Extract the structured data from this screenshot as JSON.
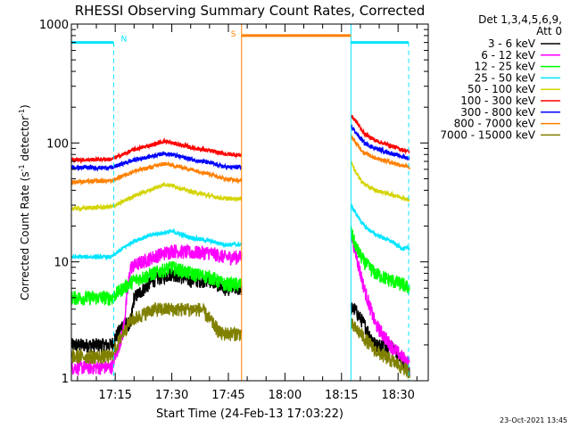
{
  "chart_data": {
    "type": "line",
    "title": "RHESSI Observing Summary Count Rates, Corrected",
    "xlabel": "Start Time (24-Feb-13 17:03:22)",
    "ylabel_main": "Corrected Count Rate (s",
    "ylabel_sup": "-1",
    "ylabel_tail": " detector",
    "ylabel_sup2": "-1",
    "ylabel_end": ")",
    "footer": "23-Oct-2021 13:45",
    "y_scale": "log",
    "ylim": [
      1,
      1000
    ],
    "xlim_minutes": [
      1023.37,
      1118
    ],
    "y_ticks": [
      {
        "v": 1,
        "label": "1"
      },
      {
        "v": 10,
        "label": "10"
      },
      {
        "v": 100,
        "label": "100"
      },
      {
        "v": 1000,
        "label": "1000"
      }
    ],
    "x_ticks": [
      {
        "m": 1035,
        "label": "17:15"
      },
      {
        "m": 1050,
        "label": "17:30"
      },
      {
        "m": 1065,
        "label": "17:45"
      },
      {
        "m": 1080,
        "label": "18:00"
      },
      {
        "m": 1095,
        "label": "18:15"
      },
      {
        "m": 1110,
        "label": "18:30"
      }
    ],
    "legend_header": [
      "Det 1,3,4,5,6,9,",
      "Att 0"
    ],
    "series": [
      {
        "name": "3 - 6 keV",
        "color": "#000000",
        "points": [
          [
            1023.4,
            2
          ],
          [
            1034,
            2
          ],
          [
            1037,
            3
          ],
          [
            1039,
            3
          ],
          [
            1040,
            5
          ],
          [
            1045,
            7
          ],
          [
            1050,
            8
          ],
          [
            1055,
            7
          ],
          [
            1060,
            7
          ],
          [
            1064,
            6
          ],
          [
            1068.5,
            6
          ],
          [
            1098.5,
            4
          ],
          [
            1101,
            3
          ],
          [
            1104,
            2
          ],
          [
            1108,
            2
          ],
          [
            1111,
            1.5
          ],
          [
            1113,
            1.2
          ]
        ]
      },
      {
        "name": "6 - 12 keV",
        "color": "#ff00ff",
        "points": [
          [
            1023.4,
            1.3
          ],
          [
            1034,
            1.3
          ],
          [
            1037,
            2.5
          ],
          [
            1039,
            9
          ],
          [
            1045,
            11
          ],
          [
            1050,
            12.5
          ],
          [
            1055,
            12
          ],
          [
            1060,
            12
          ],
          [
            1064,
            11
          ],
          [
            1068.5,
            11
          ],
          [
            1097.5,
            18
          ],
          [
            1099,
            11
          ],
          [
            1101,
            6
          ],
          [
            1104,
            3
          ],
          [
            1108,
            2
          ],
          [
            1111,
            1.6
          ],
          [
            1113,
            1.4
          ]
        ]
      },
      {
        "name": "12 - 25 keV",
        "color": "#00ff00",
        "points": [
          [
            1023.4,
            5
          ],
          [
            1034,
            5
          ],
          [
            1037,
            6
          ],
          [
            1040,
            7
          ],
          [
            1045,
            8
          ],
          [
            1050,
            9
          ],
          [
            1055,
            8
          ],
          [
            1060,
            7.5
          ],
          [
            1064,
            6.5
          ],
          [
            1068.5,
            6.5
          ],
          [
            1097.5,
            18
          ],
          [
            1099,
            13
          ],
          [
            1101,
            10
          ],
          [
            1104,
            8
          ],
          [
            1108,
            7
          ],
          [
            1111,
            6.5
          ],
          [
            1113,
            6
          ]
        ]
      },
      {
        "name": "25 - 50 keV",
        "color": "#00e5ff",
        "points": [
          [
            1023.4,
            11
          ],
          [
            1034,
            11
          ],
          [
            1037,
            13
          ],
          [
            1040,
            15
          ],
          [
            1045,
            17
          ],
          [
            1050,
            18
          ],
          [
            1055,
            16
          ],
          [
            1060,
            15
          ],
          [
            1064,
            14
          ],
          [
            1068.5,
            14
          ],
          [
            1097.5,
            30
          ],
          [
            1099,
            25
          ],
          [
            1101,
            20
          ],
          [
            1104,
            17
          ],
          [
            1108,
            15
          ],
          [
            1111,
            13
          ],
          [
            1113,
            13
          ]
        ]
      },
      {
        "name": "50 - 100 keV",
        "color": "#d4d400",
        "points": [
          [
            1023.4,
            28
          ],
          [
            1034,
            29
          ],
          [
            1037,
            32
          ],
          [
            1040,
            36
          ],
          [
            1045,
            41
          ],
          [
            1048,
            45
          ],
          [
            1050,
            44
          ],
          [
            1055,
            39
          ],
          [
            1060,
            36
          ],
          [
            1064,
            34
          ],
          [
            1068.5,
            34
          ],
          [
            1097.5,
            70
          ],
          [
            1099,
            55
          ],
          [
            1101,
            45
          ],
          [
            1104,
            40
          ],
          [
            1108,
            37
          ],
          [
            1111,
            35
          ],
          [
            1113,
            33
          ]
        ]
      },
      {
        "name": "100 - 300 keV",
        "color": "#ff0000",
        "points": [
          [
            1023.4,
            72
          ],
          [
            1034,
            73
          ],
          [
            1037,
            80
          ],
          [
            1040,
            88
          ],
          [
            1045,
            97
          ],
          [
            1048,
            104
          ],
          [
            1050,
            100
          ],
          [
            1055,
            92
          ],
          [
            1060,
            86
          ],
          [
            1064,
            81
          ],
          [
            1068.5,
            79
          ],
          [
            1097.5,
            170
          ],
          [
            1099,
            150
          ],
          [
            1101,
            120
          ],
          [
            1104,
            105
          ],
          [
            1108,
            95
          ],
          [
            1111,
            88
          ],
          [
            1113,
            85
          ]
        ]
      },
      {
        "name": "300 - 800 keV",
        "color": "#0000ff",
        "points": [
          [
            1023.4,
            62
          ],
          [
            1034,
            62
          ],
          [
            1037,
            67
          ],
          [
            1040,
            72
          ],
          [
            1045,
            78
          ],
          [
            1048,
            82
          ],
          [
            1050,
            80
          ],
          [
            1055,
            73
          ],
          [
            1060,
            68
          ],
          [
            1064,
            63
          ],
          [
            1068.5,
            62
          ],
          [
            1097.5,
            140
          ],
          [
            1099,
            120
          ],
          [
            1101,
            100
          ],
          [
            1104,
            90
          ],
          [
            1108,
            82
          ],
          [
            1111,
            77
          ],
          [
            1113,
            74
          ]
        ]
      },
      {
        "name": "800 - 7000 keV",
        "color": "#ff8000",
        "points": [
          [
            1023.4,
            47
          ],
          [
            1034,
            48
          ],
          [
            1037,
            53
          ],
          [
            1040,
            58
          ],
          [
            1045,
            63
          ],
          [
            1048,
            67
          ],
          [
            1050,
            65
          ],
          [
            1055,
            60
          ],
          [
            1060,
            55
          ],
          [
            1064,
            50
          ],
          [
            1068.5,
            48
          ],
          [
            1097.5,
            115
          ],
          [
            1099,
            98
          ],
          [
            1101,
            83
          ],
          [
            1104,
            75
          ],
          [
            1108,
            69
          ],
          [
            1111,
            65
          ],
          [
            1113,
            62
          ]
        ]
      },
      {
        "name": "7000 - 15000 keV",
        "color": "#808000",
        "points": [
          [
            1023.4,
            1.6
          ],
          [
            1034,
            1.6
          ],
          [
            1037,
            2.5
          ],
          [
            1039,
            3.2
          ],
          [
            1045,
            4
          ],
          [
            1050,
            4
          ],
          [
            1055,
            4
          ],
          [
            1058,
            4
          ],
          [
            1061,
            3
          ],
          [
            1063,
            2.5
          ],
          [
            1068.5,
            2.5
          ],
          [
            1097.5,
            3
          ],
          [
            1100,
            2.5
          ],
          [
            1104,
            1.8
          ],
          [
            1108,
            1.5
          ],
          [
            1111,
            1.3
          ],
          [
            1113,
            1.2
          ]
        ]
      }
    ],
    "night": [
      {
        "start": 1023.4,
        "end": 1034.6
      },
      {
        "start": 1097.5,
        "end": 1112.8
      }
    ],
    "night_label": "N",
    "night_level": 700,
    "saa": [
      {
        "start": 1068.5,
        "end": 1097.5
      }
    ],
    "saa_label": "S",
    "saa_level": 800,
    "colors": {
      "night": "#00e5ff",
      "saa": "#ff8000",
      "axis": "#000000"
    }
  }
}
